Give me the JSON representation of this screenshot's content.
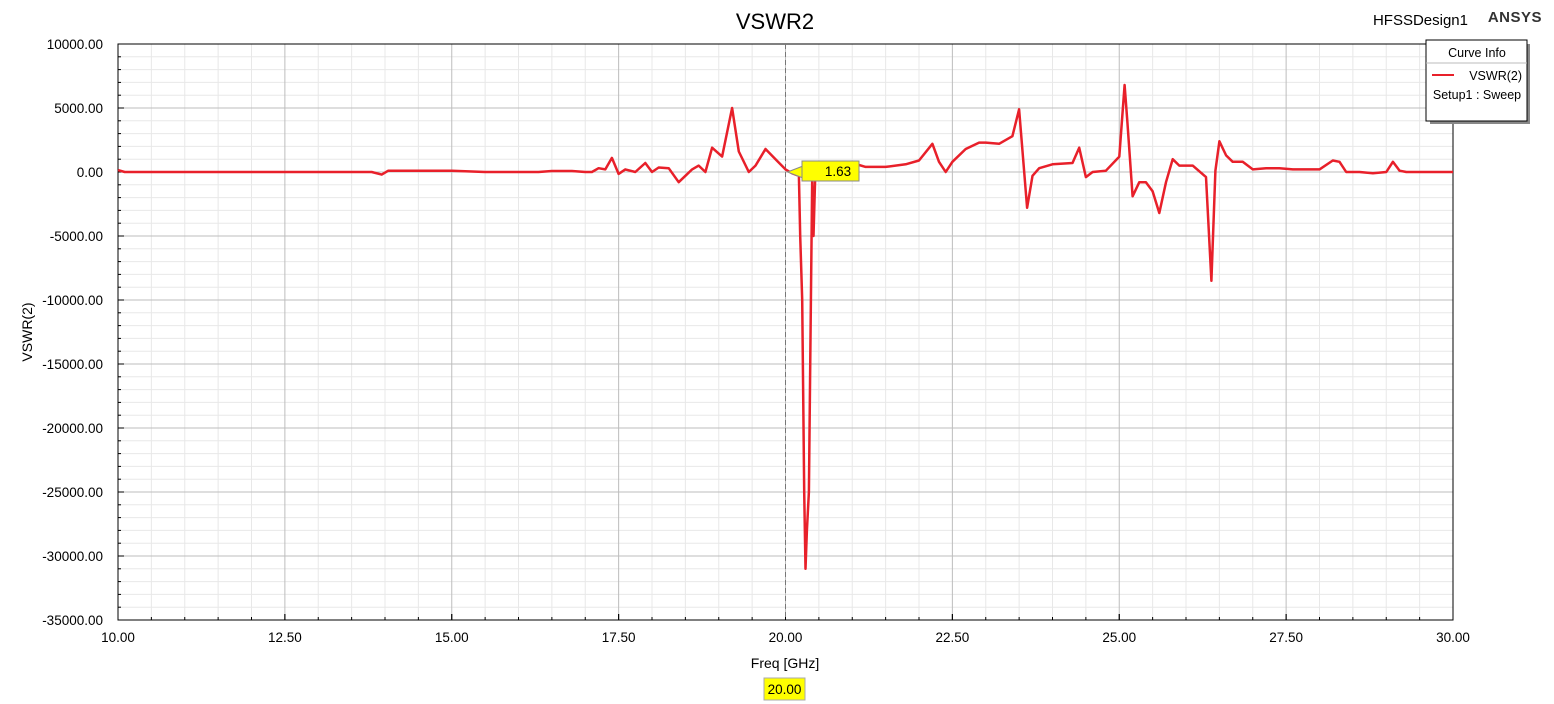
{
  "chart_data": {
    "type": "line",
    "title": "VSWR2",
    "design_name": "HFSSDesign1",
    "brand": "ANSYS",
    "xlabel": "Freq [GHz]",
    "ylabel": "VSWR(2)",
    "xlim": [
      10,
      30
    ],
    "ylim": [
      -35000,
      10000
    ],
    "x_ticks": [
      10,
      12.5,
      15,
      17.5,
      20,
      22.5,
      25,
      27.5,
      30
    ],
    "x_tick_labels": [
      "10.00",
      "12.50",
      "15.00",
      "17.50",
      "20.00",
      "22.50",
      "25.00",
      "27.50",
      "30.00"
    ],
    "y_ticks": [
      10000,
      5000,
      0,
      -5000,
      -10000,
      -15000,
      -20000,
      -25000,
      -30000,
      -35000
    ],
    "y_tick_labels": [
      "10000.00",
      "5000.00",
      "0.00",
      "-5000.00",
      "-10000.00",
      "-15000.00",
      "-20000.00",
      "-25000.00",
      "-30000.00",
      "-35000.00"
    ],
    "grid": true,
    "legend": {
      "title": "Curve Info",
      "placement": "top-right",
      "entries": [
        {
          "name": "VSWR(2)",
          "sub": "Setup1 : Sweep",
          "color": "#e8202a"
        }
      ]
    },
    "marker": {
      "x": 20.0,
      "y": 1.63,
      "y_label": "1.63",
      "x_label": "20.00",
      "fill": "#ffff00"
    },
    "series": [
      {
        "name": "VSWR(2)",
        "color": "#e8202a",
        "x": [
          10.0,
          10.1,
          10.5,
          11.0,
          12.0,
          13.0,
          13.8,
          13.95,
          14.05,
          14.2,
          14.5,
          15.0,
          15.5,
          16.0,
          16.3,
          16.5,
          16.8,
          17.0,
          17.1,
          17.2,
          17.3,
          17.4,
          17.5,
          17.6,
          17.75,
          17.9,
          18.0,
          18.1,
          18.25,
          18.4,
          18.5,
          18.6,
          18.7,
          18.8,
          18.9,
          19.05,
          19.2,
          19.3,
          19.45,
          19.55,
          19.7,
          19.85,
          20.0,
          20.1,
          20.2,
          20.22,
          20.25,
          20.28,
          20.3,
          20.32,
          20.35,
          20.38,
          20.4,
          20.42,
          20.45,
          20.5,
          20.6,
          20.8,
          21.0,
          21.2,
          21.5,
          21.8,
          22.0,
          22.2,
          22.3,
          22.4,
          22.5,
          22.7,
          22.9,
          23.0,
          23.2,
          23.4,
          23.5,
          23.62,
          23.7,
          23.8,
          24.0,
          24.3,
          24.4,
          24.5,
          24.6,
          24.8,
          25.0,
          25.08,
          25.12,
          25.2,
          25.3,
          25.4,
          25.5,
          25.6,
          25.7,
          25.8,
          25.9,
          26.1,
          26.3,
          26.38,
          26.44,
          26.5,
          26.6,
          26.7,
          26.85,
          27.0,
          27.2,
          27.4,
          27.6,
          27.8,
          28.0,
          28.2,
          28.3,
          28.4,
          28.5,
          28.6,
          28.8,
          29.0,
          29.1,
          29.2,
          29.3,
          29.5,
          30.0
        ],
        "values": [
          150,
          0,
          0,
          0,
          0,
          0,
          0,
          -200,
          100,
          100,
          100,
          100,
          0,
          0,
          0,
          80,
          80,
          0,
          0,
          300,
          200,
          1100,
          -150,
          200,
          0,
          700,
          0,
          350,
          300,
          -800,
          -300,
          200,
          500,
          0,
          1900,
          1200,
          5000,
          1600,
          0,
          500,
          1800,
          1000,
          200,
          -100,
          -300,
          -5000,
          -10000,
          -25000,
          -31000,
          -28000,
          -25000,
          -10000,
          -500,
          -5000,
          500,
          600,
          700,
          800,
          700,
          400,
          400,
          600,
          900,
          2200,
          800,
          0,
          800,
          1800,
          2300,
          2300,
          2200,
          2800,
          4900,
          -2800,
          -300,
          300,
          600,
          700,
          1900,
          -400,
          0,
          100,
          1200,
          6800,
          4000,
          -1900,
          -800,
          -800,
          -1500,
          -3200,
          -800,
          1000,
          500,
          500,
          -400,
          -8500,
          100,
          2400,
          1300,
          800,
          800,
          200,
          300,
          300,
          200,
          200,
          200,
          900,
          800,
          0,
          0,
          0,
          -100,
          0,
          800,
          100,
          0,
          0,
          0
        ]
      }
    ]
  }
}
